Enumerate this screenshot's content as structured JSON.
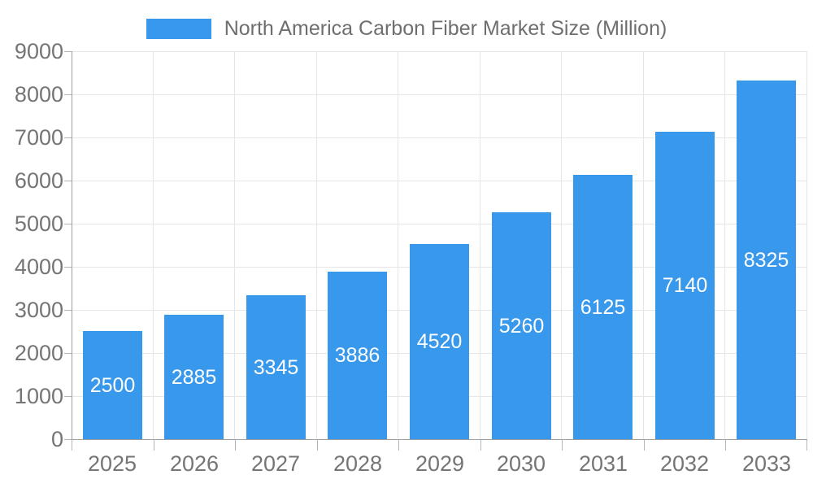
{
  "legend": {
    "label": "North America Carbon Fiber Market Size (Million)"
  },
  "chart_data": {
    "type": "bar",
    "title": "North America Carbon Fiber Market Size (Million)",
    "categories": [
      "2025",
      "2026",
      "2027",
      "2028",
      "2029",
      "2030",
      "2031",
      "2032",
      "2033"
    ],
    "values": [
      2500,
      2885,
      3345,
      3886,
      4520,
      5260,
      6125,
      7140,
      8325
    ],
    "series": [
      {
        "name": "North America Carbon Fiber Market Size (Million)",
        "values": [
          2500,
          2885,
          3345,
          3886,
          4520,
          5260,
          6125,
          7140,
          8325
        ]
      }
    ],
    "xlabel": "",
    "ylabel": "",
    "ylim": [
      0,
      9000
    ],
    "y_tick_step": 1000,
    "y_tick_labels": [
      "0",
      "1000",
      "2000",
      "3000",
      "4000",
      "5000",
      "6000",
      "7000",
      "8000",
      "9000"
    ],
    "grid": true,
    "legend_position": "top",
    "bar_value_labels_shown": true
  },
  "colors": {
    "bar": "#3898EC",
    "grid": "#e6e6e6",
    "axis_line": "#9e9e9e",
    "tick": "#b5b5b5",
    "axis_text": "#757575",
    "legend_text": "#6e6e6e",
    "bar_label_text": "#ffffff",
    "background": "#ffffff"
  }
}
